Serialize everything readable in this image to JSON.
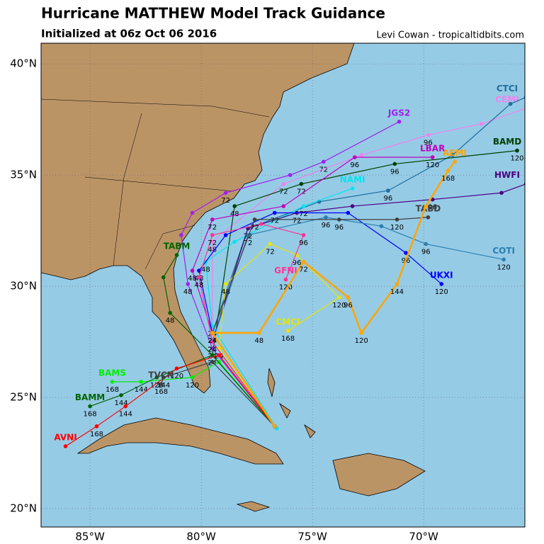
{
  "map": {
    "title": "Hurricane MATTHEW Model Track Guidance",
    "subtitle": "Initialized at 06z Oct 06 2016",
    "credit": "Levi Cowan - tropicaltidbits.com",
    "xlim": [
      -87.2,
      -65.45
    ],
    "ylim": [
      19.17,
      40.93
    ],
    "xticks": [
      {
        "value": -85,
        "label": "85°W"
      },
      {
        "value": -80,
        "label": "80°W"
      },
      {
        "value": -75,
        "label": "75°W"
      },
      {
        "value": -70,
        "label": "70°W"
      }
    ],
    "yticks": [
      {
        "value": 20,
        "label": "20°N"
      },
      {
        "value": 25,
        "label": "25°N"
      },
      {
        "value": 30,
        "label": "30°N"
      },
      {
        "value": 35,
        "label": "35°N"
      },
      {
        "value": 40,
        "label": "40°N"
      }
    ],
    "grid": true,
    "tracks": [
      {
        "name": "JGS2",
        "color": "#a020f0",
        "lon": [
          -76.7,
          -79.5,
          -80.6,
          -80.9,
          -80.4,
          -78.9,
          -76.0,
          -74.5,
          -71.1
        ],
        "lat": [
          23.7,
          27.2,
          30.1,
          32.3,
          33.3,
          34.2,
          35.0,
          35.6,
          37.4
        ],
        "hours": [
          null,
          24,
          48,
          null,
          null,
          72,
          null,
          72,
          null
        ]
      },
      {
        "name": "CEMI",
        "color": "#ee82ee",
        "lon": [
          -76.7,
          -79.5,
          -79.5,
          -76.3,
          -72.8,
          -69.8,
          -67.4,
          -65.4
        ],
        "lat": [
          23.7,
          27.5,
          32.0,
          34.6,
          35.9,
          36.8,
          37.3,
          38.0
        ],
        "hours": [
          null,
          null,
          48,
          72,
          null,
          96,
          null,
          null
        ]
      },
      {
        "name": "CTCI",
        "color": "#1f6f9f",
        "lon": [
          -76.7,
          -79.5,
          -77.9,
          -74.7,
          -71.6,
          -68.7,
          -66.1,
          -65.4
        ],
        "lat": [
          23.7,
          27.9,
          32.6,
          33.8,
          34.3,
          35.9,
          38.2,
          38.5
        ],
        "hours": [
          null,
          null,
          72,
          null,
          96,
          null,
          null,
          null
        ]
      },
      {
        "name": "BAMD",
        "color": "#004000",
        "lon": [
          -76.7,
          -79.5,
          -78.5,
          -75.5,
          -71.3,
          -65.8
        ],
        "lat": [
          23.7,
          26.9,
          33.6,
          34.6,
          35.5,
          36.1
        ],
        "hours": [
          null,
          24,
          48,
          72,
          96,
          120
        ]
      },
      {
        "name": "LBAR",
        "color": "#c000c0",
        "lon": [
          -76.7,
          -79.5,
          -80.4,
          -79.5,
          -76.3,
          -73.1,
          -69.6
        ],
        "lat": [
          23.7,
          27.9,
          30.7,
          33.0,
          33.6,
          35.8,
          35.8
        ],
        "hours": [
          null,
          24,
          48,
          72,
          null,
          96,
          120
        ]
      },
      {
        "name": "NAMI",
        "color": "#00e5ee",
        "lon": [
          -76.6,
          -79.5,
          -79.8,
          -78.5,
          -75.4,
          -73.2
        ],
        "lat": [
          23.6,
          28.2,
          31.1,
          32.0,
          33.6,
          34.4
        ],
        "hours": [
          null,
          24,
          48,
          null,
          72,
          null
        ]
      },
      {
        "name": "HWFI",
        "color": "#4b0082",
        "lon": [
          -76.7,
          -79.5,
          -77.9,
          -75.7,
          -73.2,
          -69.6,
          -66.5,
          -65.4
        ],
        "lat": [
          23.7,
          27.5,
          32.6,
          33.3,
          33.6,
          33.9,
          34.2,
          34.6
        ],
        "hours": [
          null,
          null,
          72,
          72,
          null,
          96,
          null,
          null
        ]
      },
      {
        "name": "UKXI",
        "color": "#0000ff",
        "lon": [
          -76.7,
          -79.5,
          -80.1,
          -78.9,
          -76.7,
          -73.4,
          -70.8,
          -69.2
        ],
        "lat": [
          23.7,
          27.9,
          30.7,
          32.3,
          33.3,
          33.3,
          31.5,
          30.1
        ],
        "hours": [
          null,
          24,
          48,
          null,
          72,
          null,
          96,
          120
        ]
      },
      {
        "name": "COTI",
        "color": "#2a7fb0",
        "lon": [
          -76.7,
          -79.5,
          -77.9,
          -74.4,
          -71.9,
          -69.9,
          -66.4
        ],
        "lat": [
          23.7,
          27.5,
          32.3,
          33.1,
          32.7,
          31.9,
          31.2
        ],
        "hours": [
          null,
          24,
          72,
          96,
          null,
          96,
          120
        ]
      },
      {
        "name": "CMCI",
        "color": "#e5e500",
        "lon": [
          -76.7,
          -79.2,
          -78.9,
          -76.9,
          -75.7,
          -73.8,
          -76.1
        ],
        "lat": [
          23.7,
          27.2,
          30.1,
          31.9,
          31.4,
          29.5,
          28.0
        ],
        "hours": [
          null,
          24,
          48,
          72,
          96,
          120,
          168
        ]
      },
      {
        "name": "GFNI",
        "color": "#ff3399",
        "lon": [
          -76.7,
          -79.5,
          -80.1,
          -79.5,
          -77.3,
          -75.4,
          -76.2
        ],
        "lat": [
          23.7,
          27.5,
          30.4,
          32.3,
          32.8,
          32.3,
          30.3
        ],
        "hours": [
          null,
          24,
          48,
          72,
          null,
          96,
          120
        ]
      },
      {
        "name": "TABM",
        "color": "#006400",
        "lon": [
          -76.7,
          -79.5,
          -81.4,
          -81.7,
          -81.1
        ],
        "lat": [
          23.7,
          26.9,
          28.8,
          30.4,
          31.4
        ],
        "hours": [
          null,
          24,
          48,
          null,
          null
        ]
      },
      {
        "name": "TABD",
        "color": "#404040",
        "lon": [
          -76.7,
          -79.5,
          -77.6,
          -73.8,
          -71.2,
          -69.8
        ],
        "lat": [
          23.7,
          27.9,
          33.0,
          33.0,
          33.0,
          33.1
        ],
        "hours": [
          null,
          24,
          72,
          96,
          120,
          null
        ]
      },
      {
        "name": "BAMS",
        "color": "#00ee00",
        "lon": [
          -76.7,
          -79.2,
          -80.4,
          -82.7,
          -84.0
        ],
        "lat": [
          23.7,
          26.6,
          25.9,
          25.7,
          25.7
        ],
        "hours": [
          null,
          null,
          120,
          144,
          168
        ]
      },
      {
        "name": "BAMM",
        "color": "#006400",
        "lon": [
          -76.7,
          -79.5,
          -82.0,
          -83.6,
          -85.0
        ],
        "lat": [
          23.7,
          26.9,
          25.9,
          25.1,
          24.6
        ],
        "hours": [
          null,
          null,
          120,
          144,
          168
        ]
      },
      {
        "name": "AVNI",
        "color": "#ff0000",
        "lon": [
          -76.7,
          -79.2,
          -81.1,
          -83.4,
          -84.7,
          -86.1
        ],
        "lat": [
          23.7,
          26.9,
          26.3,
          24.6,
          23.7,
          22.8
        ],
        "hours": [
          null,
          null,
          120,
          144,
          168,
          null
        ]
      },
      {
        "name": "TVCN",
        "color": "#404040",
        "lon": [
          -76.7,
          -79.5,
          -81.7,
          -81.8
        ],
        "lat": [
          23.7,
          26.6,
          25.9,
          25.6
        ],
        "hours": [
          null,
          null,
          144,
          168
        ]
      },
      {
        "name": "AEMI",
        "color": "#ffa500",
        "lon": [
          -76.7,
          -79.5,
          -77.4,
          -75.4,
          -73.4,
          -72.8,
          -71.2,
          -69.9,
          -68.9,
          -68.6
        ],
        "lat": [
          23.7,
          27.9,
          27.9,
          31.1,
          29.5,
          27.9,
          30.1,
          33.6,
          35.2,
          35.6
        ],
        "hours": [
          null,
          24,
          48,
          72,
          96,
          120,
          144,
          null,
          168,
          null
        ]
      }
    ]
  }
}
